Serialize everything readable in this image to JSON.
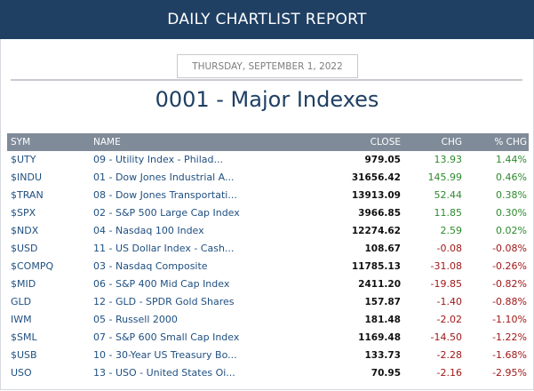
{
  "header": {
    "title": "DAILY CHARTLIST REPORT"
  },
  "report": {
    "date": "THURSDAY, SEPTEMBER 1, 2022"
  },
  "list": {
    "title": "0001 - Major Indexes"
  },
  "columns": {
    "sym": "SYM",
    "name": "NAME",
    "close": "CLOSE",
    "chg": "CHG",
    "pct": "% CHG"
  },
  "colors": {
    "header_bg": "#1f3f63",
    "table_header_bg": "#7f8b99",
    "link": "#1f4f80",
    "positive": "#2e8a2e",
    "negative": "#a01818"
  },
  "rows": [
    {
      "sym": "$UTY",
      "name": "09 - Utility Index - Philad...",
      "close": "979.05",
      "chg": "13.93",
      "pct": "1.44%",
      "dir": "pos"
    },
    {
      "sym": "$INDU",
      "name": "01 - Dow Jones Industrial A...",
      "close": "31656.42",
      "chg": "145.99",
      "pct": "0.46%",
      "dir": "pos"
    },
    {
      "sym": "$TRAN",
      "name": "08 - Dow Jones Transportati...",
      "close": "13913.09",
      "chg": "52.44",
      "pct": "0.38%",
      "dir": "pos"
    },
    {
      "sym": "$SPX",
      "name": "02 - S&P 500 Large Cap Index",
      "close": "3966.85",
      "chg": "11.85",
      "pct": "0.30%",
      "dir": "pos"
    },
    {
      "sym": "$NDX",
      "name": "04 - Nasdaq 100 Index",
      "close": "12274.62",
      "chg": "2.59",
      "pct": "0.02%",
      "dir": "pos"
    },
    {
      "sym": "$USD",
      "name": "11 - US Dollar Index - Cash...",
      "close": "108.67",
      "chg": "-0.08",
      "pct": "-0.08%",
      "dir": "neg"
    },
    {
      "sym": "$COMPQ",
      "name": "03 - Nasdaq Composite",
      "close": "11785.13",
      "chg": "-31.08",
      "pct": "-0.26%",
      "dir": "neg"
    },
    {
      "sym": "$MID",
      "name": "06 - S&P 400 Mid Cap Index",
      "close": "2411.20",
      "chg": "-19.85",
      "pct": "-0.82%",
      "dir": "neg"
    },
    {
      "sym": "GLD",
      "name": "12 - GLD - SPDR Gold Shares",
      "close": "157.87",
      "chg": "-1.40",
      "pct": "-0.88%",
      "dir": "neg"
    },
    {
      "sym": "IWM",
      "name": "05 - Russell 2000",
      "close": "181.48",
      "chg": "-2.02",
      "pct": "-1.10%",
      "dir": "neg"
    },
    {
      "sym": "$SML",
      "name": "07 - S&P 600 Small Cap Index",
      "close": "1169.48",
      "chg": "-14.50",
      "pct": "-1.22%",
      "dir": "neg"
    },
    {
      "sym": "$USB",
      "name": "10 - 30-Year US Treasury Bo...",
      "close": "133.73",
      "chg": "-2.28",
      "pct": "-1.68%",
      "dir": "neg"
    },
    {
      "sym": "USO",
      "name": "13 - USO - United States Oi...",
      "close": "70.95",
      "chg": "-2.16",
      "pct": "-2.95%",
      "dir": "neg"
    }
  ]
}
